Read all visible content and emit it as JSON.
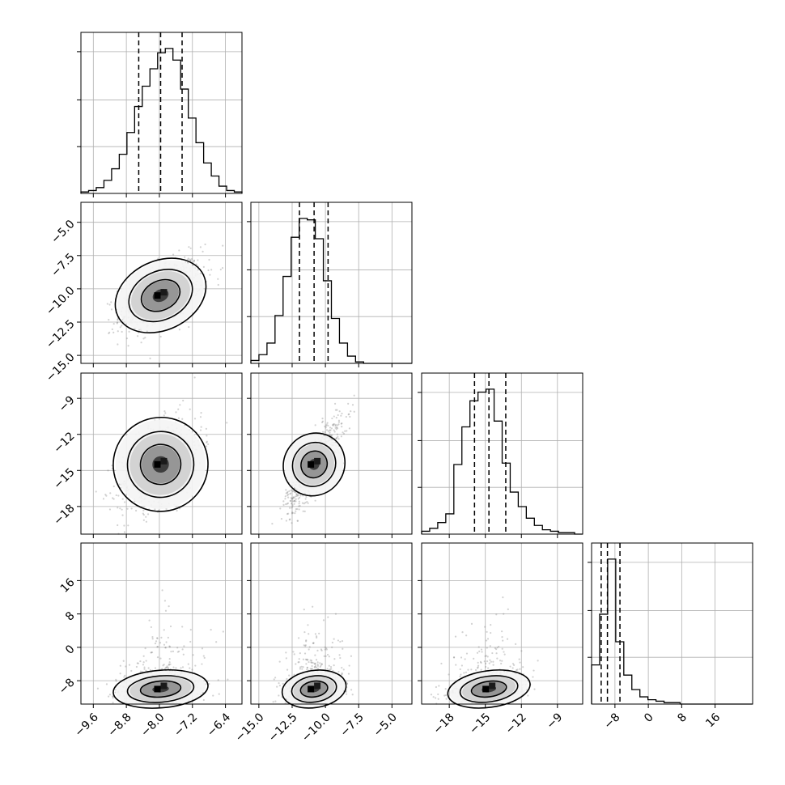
{
  "chart_data": {
    "type": "corner",
    "grid": true,
    "n_params": 4,
    "params": [
      {
        "range": [
          -9.9,
          -6.0
        ],
        "ticks": [
          -9.6,
          -8.8,
          -8.0,
          -7.2,
          -6.4
        ],
        "tick_labels": [
          "−9.6",
          "−8.8",
          "−8.0",
          "−7.2",
          "−6.4"
        ],
        "quantiles": [
          -8.5,
          -7.97,
          -7.45
        ]
      },
      {
        "range": [
          -15.6,
          -3.5
        ],
        "ticks": [
          -15.0,
          -12.5,
          -10.0,
          -7.5,
          -5.0
        ],
        "tick_labels": [
          "−15.0",
          "−12.5",
          "−10.0",
          "−7.5",
          "−5.0"
        ],
        "quantiles": [
          -11.95,
          -10.85,
          -9.8
        ]
      },
      {
        "range": [
          -20.3,
          -6.9
        ],
        "ticks": [
          -18,
          -15,
          -12,
          -9
        ],
        "tick_labels": [
          "−18",
          "−15",
          "−12",
          "−9"
        ],
        "quantiles": [
          -15.9,
          -14.7,
          -13.3
        ]
      },
      {
        "range": [
          -13.6,
          25.0
        ],
        "ticks": [
          -8,
          0,
          8,
          16
        ],
        "tick_labels": [
          "−8",
          "0",
          "8",
          "16"
        ],
        "quantiles": [
          -11.3,
          -9.8,
          -6.8
        ]
      }
    ],
    "hist1d": [
      {
        "heights": [
          0.01,
          0.02,
          0.04,
          0.09,
          0.17,
          0.27,
          0.42,
          0.6,
          0.74,
          0.86,
          0.97,
          1.0,
          0.92,
          0.72,
          0.52,
          0.35,
          0.21,
          0.12,
          0.05,
          0.02,
          0.01
        ]
      },
      {
        "heights": [
          0.02,
          0.06,
          0.14,
          0.33,
          0.6,
          0.87,
          1.0,
          0.99,
          0.86,
          0.57,
          0.31,
          0.14,
          0.05,
          0.01,
          0.0,
          0.0,
          0.0,
          0.0,
          0.0,
          0.0
        ]
      },
      {
        "heights": [
          0.02,
          0.04,
          0.08,
          0.14,
          0.48,
          0.74,
          0.92,
          0.98,
          1.0,
          0.78,
          0.49,
          0.29,
          0.19,
          0.11,
          0.06,
          0.03,
          0.02,
          0.01,
          0.01,
          0.0
        ]
      },
      {
        "heights": [
          0.27,
          0.62,
          1.0,
          0.43,
          0.2,
          0.1,
          0.05,
          0.03,
          0.02,
          0.01,
          0.01,
          0.0,
          0.0,
          0.0,
          0.0,
          0.0,
          0.0,
          0.0,
          0.0,
          0.0
        ]
      }
    ],
    "hist2d": [
      {
        "row": 1,
        "col": 0,
        "center": [
          -7.97,
          -10.5
        ],
        "sigma": [
          0.5,
          1.35
        ],
        "corr": 0.55,
        "n_points": 700,
        "skew_y": 0
      },
      {
        "row": 2,
        "col": 0,
        "center": [
          -7.97,
          -14.5
        ],
        "sigma": [
          0.5,
          1.9
        ],
        "corr": 0.45,
        "n_points": 700,
        "skew_y": 0
      },
      {
        "row": 2,
        "col": 1,
        "center": [
          -10.85,
          -14.5
        ],
        "sigma": [
          1.05,
          1.9
        ],
        "corr": 0.82,
        "n_points": 700,
        "skew_y": 0
      },
      {
        "row": 3,
        "col": 0,
        "center": [
          -7.97,
          -10.0
        ],
        "sigma": [
          0.5,
          2.0
        ],
        "corr": 0.2,
        "n_points": 700,
        "skew_y": 1
      },
      {
        "row": 3,
        "col": 1,
        "center": [
          -10.85,
          -10.0
        ],
        "sigma": [
          1.05,
          2.0
        ],
        "corr": 0.25,
        "n_points": 700,
        "skew_y": 1
      },
      {
        "row": 3,
        "col": 2,
        "center": [
          -14.7,
          -10.0
        ],
        "sigma": [
          1.5,
          2.0
        ],
        "corr": 0.3,
        "n_points": 700,
        "skew_y": 1
      }
    ]
  }
}
